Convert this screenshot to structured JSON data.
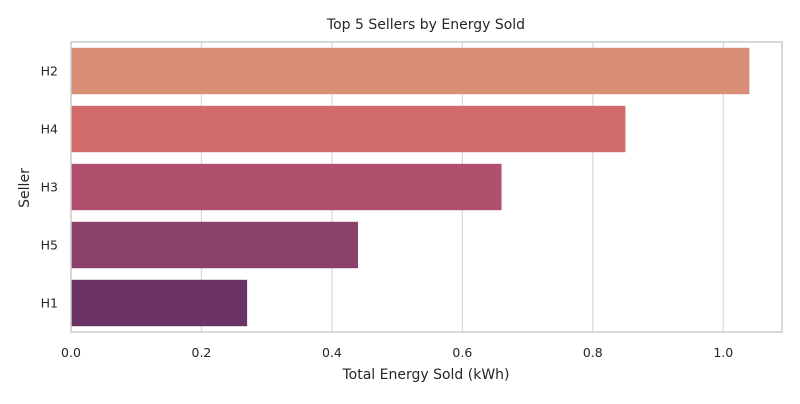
{
  "chart_data": {
    "type": "bar",
    "orientation": "horizontal",
    "title": "Top 5 Sellers by Energy Sold",
    "xlabel": "Total Energy Sold (kWh)",
    "ylabel": "Seller",
    "categories": [
      "H2",
      "H4",
      "H3",
      "H5",
      "H1"
    ],
    "values": [
      1.04,
      0.85,
      0.66,
      0.44,
      0.27
    ],
    "xlim": [
      0,
      1.09
    ],
    "xticks": [
      0.0,
      0.2,
      0.4,
      0.6,
      0.8,
      1.0
    ],
    "xtick_labels": [
      "0.0",
      "0.2",
      "0.4",
      "0.6",
      "0.8",
      "1.0"
    ],
    "grid": "x-major",
    "colors": [
      "#d98e75",
      "#d26b6b",
      "#b0506c",
      "#8b426a",
      "#6b3363"
    ],
    "grid_color": "#d9d9d9",
    "spine_color": "#cccccc",
    "text_color": "#262626"
  }
}
